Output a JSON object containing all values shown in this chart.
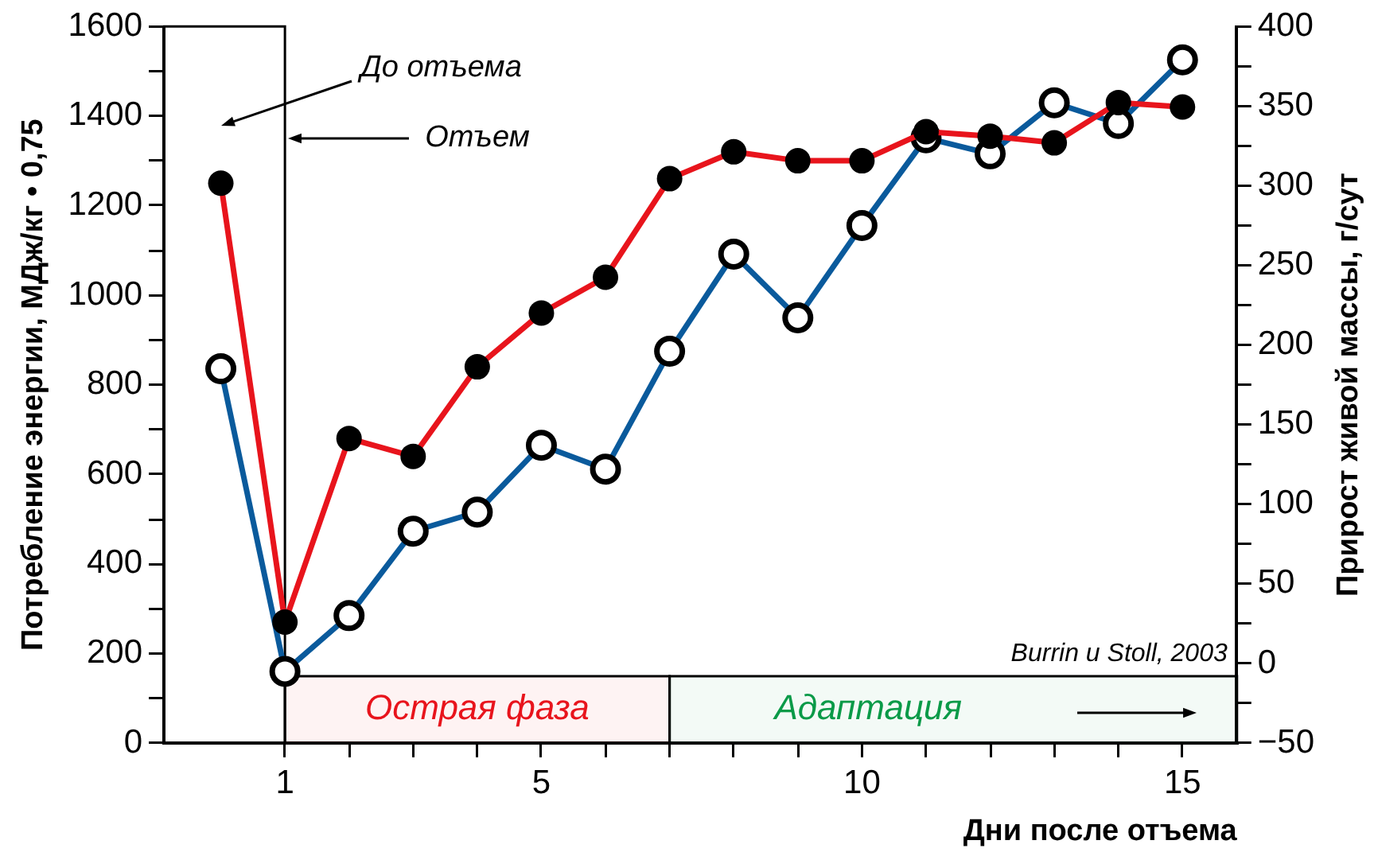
{
  "chart_data": {
    "type": "line",
    "xlabel": "Дни после отъема",
    "ylabel": "Потребление энергии, МДж/кг • 0,75",
    "y2label": "Прирост живой массы, г/сут",
    "x": [
      0,
      1,
      2,
      3,
      4,
      5,
      6,
      7,
      8,
      9,
      10,
      11,
      12,
      13,
      14,
      15
    ],
    "series": [
      {
        "color": "#e8141c",
        "values": [
          1250,
          270,
          680,
          640,
          840,
          960,
          1040,
          1260,
          1320,
          1300,
          1300,
          1365,
          1355,
          1340,
          1430,
          1420
        ]
      },
      {
        "color": "#0a5a9c",
        "axis": "y2",
        "values": [
          185,
          -5,
          30,
          83,
          95,
          137,
          122,
          196,
          257,
          217,
          275,
          330,
          320,
          352,
          339,
          379
        ]
      }
    ],
    "xlim": [
      -0.9,
      15.85
    ],
    "xticks": [
      1,
      {
        "value": 2,
        "label": null
      },
      {
        "value": 3,
        "label": null
      },
      {
        "value": 4,
        "label": null
      },
      5,
      {
        "value": 6,
        "label": null
      },
      {
        "value": 7,
        "label": null
      },
      {
        "value": 8,
        "label": null
      },
      {
        "value": 9,
        "label": null
      },
      10,
      {
        "value": 11,
        "label": null
      },
      {
        "value": 12,
        "label": null
      },
      {
        "value": 13,
        "label": null
      },
      {
        "value": 14,
        "label": null
      },
      15
    ],
    "ylim": [
      0,
      1600
    ],
    "yticks": [
      0,
      {
        "value": 100,
        "label": null
      },
      200,
      {
        "value": 300,
        "label": null
      },
      400,
      {
        "value": 500,
        "label": null
      },
      600,
      {
        "value": 700,
        "label": null
      },
      800,
      {
        "value": 900,
        "label": null
      },
      1000,
      {
        "value": 1100,
        "label": null
      },
      1200,
      {
        "value": 1300,
        "label": null
      },
      1400,
      {
        "value": 1500,
        "label": null
      },
      1600
    ],
    "y2lim": [
      -50,
      400
    ],
    "y2ticks": [
      -50,
      {
        "value": -25,
        "label": null
      },
      0,
      {
        "value": 25,
        "label": null
      },
      50,
      {
        "value": 75,
        "label": null
      },
      100,
      {
        "value": 125,
        "label": null
      },
      150,
      {
        "value": 175,
        "label": null
      },
      200,
      {
        "value": 225,
        "label": null
      },
      250,
      {
        "value": 275,
        "label": null
      },
      300,
      {
        "value": 325,
        "label": null
      },
      350,
      {
        "value": 375,
        "label": null
      },
      400
    ],
    "ref_lines": [
      {
        "axis": "x",
        "value": 1,
        "label": "Отъем"
      }
    ],
    "bands": [
      {
        "axis": "x",
        "from": 1,
        "to": 7,
        "label": "Острая фаза",
        "color": "#e8141c"
      },
      {
        "axis": "x",
        "from": 7,
        "to": 15.85,
        "label": "Адаптация",
        "color": "#0a9a48"
      }
    ],
    "annotations": [
      "До отъема",
      "Burrin и Stoll, 2003"
    ],
    "marker": "circle",
    "grid": false,
    "legend": false
  }
}
